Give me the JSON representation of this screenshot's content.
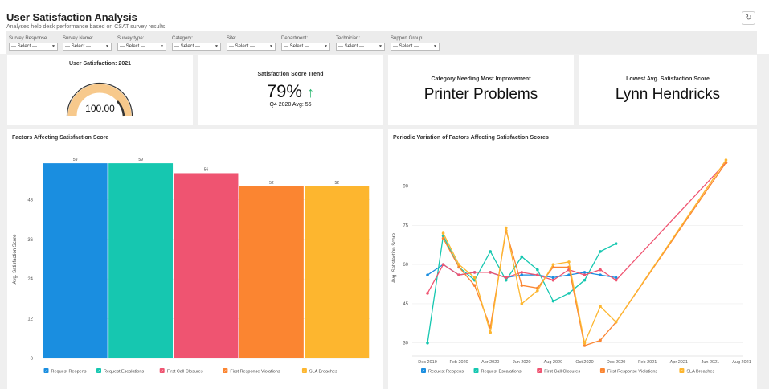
{
  "header": {
    "title": "User Satisfaction Analysis",
    "subtitle": "Analyses help desk performance based on CSAT survey results",
    "refresh_icon": "↻"
  },
  "filters": [
    {
      "label": "Survey Response ...",
      "value": "--- Select ---"
    },
    {
      "label": "Survey Name:",
      "value": "--- Select ---"
    },
    {
      "label": "Survey type:",
      "value": "--- Select ---"
    },
    {
      "label": "Category:",
      "value": "--- Select ---"
    },
    {
      "label": "Site:",
      "value": "--- Select ---"
    },
    {
      "label": "Department:",
      "value": "--- Select ---"
    },
    {
      "label": "Technician:",
      "value": "--- Select ---"
    },
    {
      "label": "Support Group:",
      "value": "--- Select ---"
    }
  ],
  "kpis": {
    "gauge": {
      "title": "User Satisfaction: 2021",
      "value": "100.00",
      "fraction": 1.0,
      "colors": {
        "track": "#f7c98c",
        "fill_edge": "#333333"
      }
    },
    "trend": {
      "title": "Satisfaction Score Trend",
      "value": "79%",
      "arrow": "↑",
      "note": "Q4 2020 Avg: 56",
      "arrow_color": "#2eb872"
    },
    "category": {
      "title": "Category Needing Most Improvement",
      "value": "Printer Problems"
    },
    "lowest": {
      "title": "Lowest Avg. Satisfaction Score",
      "value": "Lynn Hendricks"
    }
  },
  "chart_data": [
    {
      "type": "bar",
      "title": "Factors Affecting Satisfaction Score",
      "ylabel": "Avg. Satisfaction Score",
      "xlabel": "",
      "ylim": [
        0,
        60
      ],
      "yticks": [
        0,
        12,
        24,
        36,
        48
      ],
      "categories": [
        "Request Reopens",
        "Request Escalations",
        "First Call Closures",
        "First Response Violations",
        "SLA Breaches"
      ],
      "values": [
        59,
        59,
        56,
        52,
        52
      ],
      "colors": [
        "#1a8ee0",
        "#16c7b0",
        "#ef5471",
        "#fb8531",
        "#fdb62f"
      ],
      "legend": [
        "Request Reopens",
        "Request Escalations",
        "First Call Closures",
        "First Response Violations",
        "SLA Breaches"
      ],
      "legend_position": "bottom"
    },
    {
      "type": "line",
      "title": "Periodic Variation of Factors Affecting Satisfaction Scores",
      "ylabel": "Avg. Satisfaction Score",
      "xlabel": "",
      "ylim": [
        25,
        100
      ],
      "yticks": [
        30,
        45,
        60,
        75,
        90
      ],
      "xticks": [
        "Dec 2019",
        "Feb 2020",
        "Apr 2020",
        "Jun 2020",
        "Aug 2020",
        "Oct 2020",
        "Dec 2020",
        "Feb 2021",
        "Apr 2021",
        "Jun 2021",
        "Aug 2021"
      ],
      "legend_position": "bottom",
      "series": [
        {
          "name": "Request Reopens",
          "color": "#1a8ee0",
          "points": [
            [
              "2019-12",
              56
            ],
            [
              "2020-01",
              60
            ],
            [
              "2020-02",
              56
            ],
            [
              "2020-03",
              57
            ],
            [
              "2020-04",
              57
            ],
            [
              "2020-05",
              55
            ],
            [
              "2020-06",
              56
            ],
            [
              "2020-07",
              56
            ],
            [
              "2020-08",
              55
            ],
            [
              "2020-09",
              56
            ],
            [
              "2020-10",
              57
            ],
            [
              "2020-11",
              56
            ],
            [
              "2020-12",
              55
            ]
          ]
        },
        {
          "name": "Request Escalations",
          "color": "#16c7b0",
          "points": [
            [
              "2019-12",
              30
            ],
            [
              "2020-01",
              71
            ],
            [
              "2020-02",
              59
            ],
            [
              "2020-03",
              54
            ],
            [
              "2020-04",
              65
            ],
            [
              "2020-05",
              54
            ],
            [
              "2020-06",
              63
            ],
            [
              "2020-07",
              58
            ],
            [
              "2020-08",
              46
            ],
            [
              "2020-09",
              49
            ],
            [
              "2020-10",
              54
            ],
            [
              "2020-11",
              65
            ],
            [
              "2020-12",
              68
            ]
          ]
        },
        {
          "name": "First Call Closures",
          "color": "#ef5471",
          "points": [
            [
              "2019-12",
              49
            ],
            [
              "2020-01",
              60
            ],
            [
              "2020-02",
              56
            ],
            [
              "2020-03",
              57
            ],
            [
              "2020-04",
              57
            ],
            [
              "2020-05",
              55
            ],
            [
              "2020-06",
              57
            ],
            [
              "2020-07",
              56
            ],
            [
              "2020-08",
              54
            ],
            [
              "2020-09",
              58
            ],
            [
              "2020-10",
              56
            ],
            [
              "2020-11",
              58
            ],
            [
              "2020-12",
              54
            ],
            [
              "2021-07",
              99
            ]
          ]
        },
        {
          "name": "First Response Violations",
          "color": "#fb8531",
          "points": [
            [
              "2020-01",
              70
            ],
            [
              "2020-02",
              59
            ],
            [
              "2020-03",
              52
            ],
            [
              "2020-04",
              36
            ],
            [
              "2020-05",
              73
            ],
            [
              "2020-06",
              52
            ],
            [
              "2020-07",
              51
            ],
            [
              "2020-08",
              59
            ],
            [
              "2020-09",
              59
            ],
            [
              "2020-10",
              29
            ],
            [
              "2020-11",
              31
            ],
            [
              "2020-12",
              38
            ],
            [
              "2021-07",
              99
            ]
          ]
        },
        {
          "name": "SLA Breaches",
          "color": "#fdb62f",
          "points": [
            [
              "2020-01",
              72
            ],
            [
              "2020-02",
              60
            ],
            [
              "2020-03",
              55
            ],
            [
              "2020-04",
              34
            ],
            [
              "2020-05",
              74
            ],
            [
              "2020-06",
              45
            ],
            [
              "2020-07",
              50
            ],
            [
              "2020-08",
              60
            ],
            [
              "2020-09",
              61
            ],
            [
              "2020-10",
              30
            ],
            [
              "2020-11",
              44
            ],
            [
              "2020-12",
              38
            ],
            [
              "2021-07",
              100
            ]
          ]
        }
      ]
    }
  ]
}
